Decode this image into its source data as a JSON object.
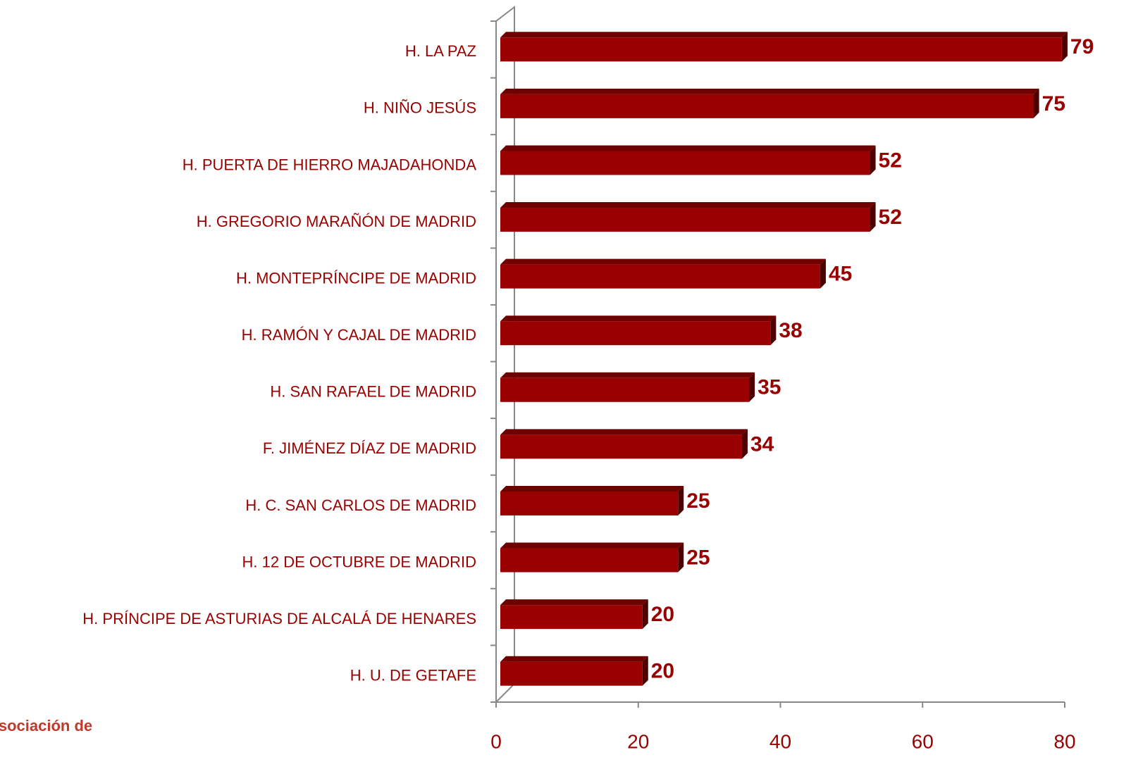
{
  "chart_data": {
    "type": "bar",
    "orientation": "horizontal",
    "categories": [
      "H. LA PAZ",
      "H. NIÑO JESÚS",
      "H. PUERTA DE HIERRO MAJADAHONDA",
      "H. GREGORIO MARAÑÓN DE MADRID",
      "H. MONTEPRÍNCIPE DE MADRID",
      "H. RAMÓN Y CAJAL DE MADRID",
      "H. SAN RAFAEL DE MADRID",
      "F. JIMÉNEZ DÍAZ DE MADRID",
      "H. C. SAN CARLOS DE MADRID",
      "H. 12 DE OCTUBRE DE MADRID",
      "H. PRÍNCIPE DE ASTURIAS DE ALCALÁ DE HENARES",
      "H. U. DE GETAFE"
    ],
    "values": [
      79,
      75,
      52,
      52,
      45,
      38,
      35,
      34,
      25,
      25,
      20,
      20
    ],
    "color": "#990000",
    "xlim": [
      0,
      80
    ],
    "xticks": [
      0,
      20,
      40,
      60,
      80
    ],
    "logo_text": "Asociación de"
  }
}
